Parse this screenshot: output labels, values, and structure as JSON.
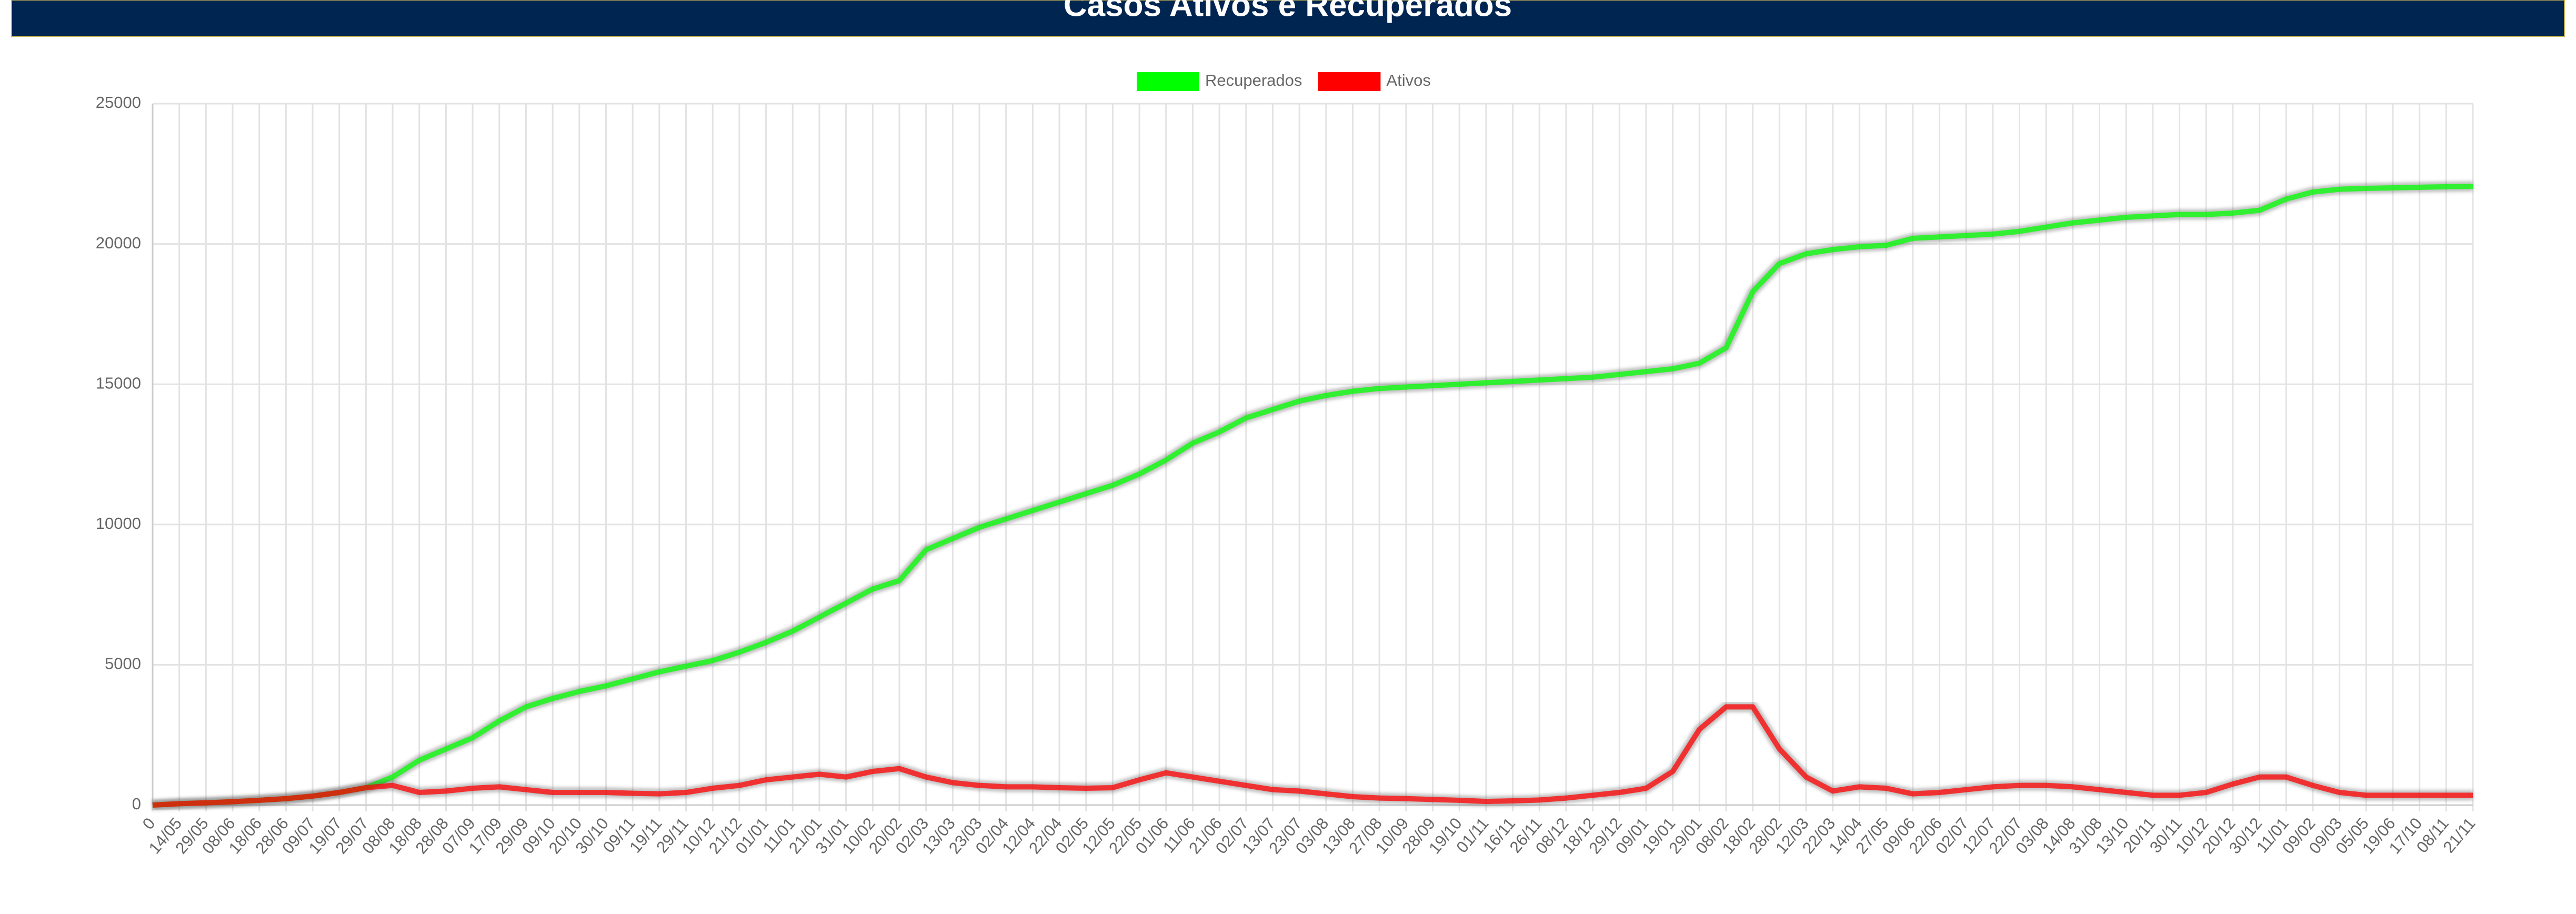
{
  "chart_data": {
    "type": "line",
    "title": "Casos Ativos e Recuperados",
    "categories": [
      "0",
      "14/05",
      "29/05",
      "08/06",
      "18/06",
      "28/06",
      "09/07",
      "19/07",
      "29/07",
      "08/08",
      "18/08",
      "28/08",
      "07/09",
      "17/09",
      "29/09",
      "09/10",
      "20/10",
      "30/10",
      "09/11",
      "19/11",
      "29/11",
      "10/12",
      "21/12",
      "01/01",
      "11/01",
      "21/01",
      "31/01",
      "10/02",
      "20/02",
      "02/03",
      "13/03",
      "23/03",
      "02/04",
      "12/04",
      "22/04",
      "02/05",
      "12/05",
      "22/05",
      "01/06",
      "11/06",
      "21/06",
      "02/07",
      "13/07",
      "23/07",
      "03/08",
      "13/08",
      "27/08",
      "10/09",
      "28/09",
      "19/10",
      "01/11",
      "16/11",
      "26/11",
      "08/12",
      "18/12",
      "29/12",
      "09/01",
      "19/01",
      "29/01",
      "08/02",
      "18/02",
      "28/02",
      "12/03",
      "22/03",
      "14/04",
      "27/05",
      "09/06",
      "22/06",
      "02/07",
      "12/07",
      "22/07",
      "03/08",
      "14/08",
      "31/08",
      "13/10",
      "20/11",
      "30/11",
      "10/12",
      "20/12",
      "30/12",
      "11/01",
      "09/02",
      "09/03",
      "05/05",
      "19/06",
      "17/10",
      "08/11",
      "21/11"
    ],
    "series": [
      {
        "name": "Recuperados",
        "color": "#00ff00",
        "values": [
          0,
          50,
          80,
          120,
          170,
          230,
          320,
          450,
          620,
          1000,
          1600,
          2000,
          2400,
          3000,
          3500,
          3800,
          4050,
          4250,
          4500,
          4750,
          4950,
          5150,
          5450,
          5800,
          6200,
          6700,
          7200,
          7700,
          8000,
          9100,
          9500,
          9900,
          10200,
          10500,
          10800,
          11100,
          11400,
          11800,
          12300,
          12900,
          13300,
          13800,
          14100,
          14400,
          14600,
          14750,
          14850,
          14900,
          14950,
          15000,
          15050,
          15100,
          15150,
          15200,
          15250,
          15350,
          15450,
          15550,
          15750,
          16300,
          18300,
          19300,
          19650,
          19800,
          19900,
          19950,
          20200,
          20250,
          20300,
          20350,
          20450,
          20600,
          20750,
          20850,
          20950,
          21000,
          21050,
          21050,
          21100,
          21200,
          21600,
          21850,
          21950,
          21980,
          22000,
          22020,
          22040,
          22050
        ]
      },
      {
        "name": "Ativos",
        "color": "#ff0000",
        "values": [
          0,
          50,
          80,
          120,
          170,
          230,
          320,
          450,
          620,
          700,
          450,
          500,
          600,
          650,
          550,
          450,
          450,
          450,
          420,
          400,
          450,
          600,
          700,
          900,
          1000,
          1100,
          1000,
          1200,
          1300,
          1000,
          800,
          700,
          650,
          650,
          620,
          600,
          620,
          900,
          1150,
          1000,
          850,
          700,
          550,
          500,
          400,
          300,
          250,
          230,
          200,
          170,
          130,
          150,
          180,
          250,
          350,
          450,
          600,
          1200,
          2700,
          3500,
          3500,
          2000,
          1000,
          500,
          650,
          600,
          400,
          450,
          550,
          650,
          700,
          700,
          650,
          550,
          450,
          350,
          350,
          450,
          750,
          1000,
          1000,
          700,
          450,
          350,
          350,
          350,
          350,
          350
        ]
      }
    ],
    "ylim": [
      0,
      25000
    ],
    "yticks": [
      0,
      5000,
      10000,
      15000,
      20000,
      25000
    ],
    "grid": true
  }
}
